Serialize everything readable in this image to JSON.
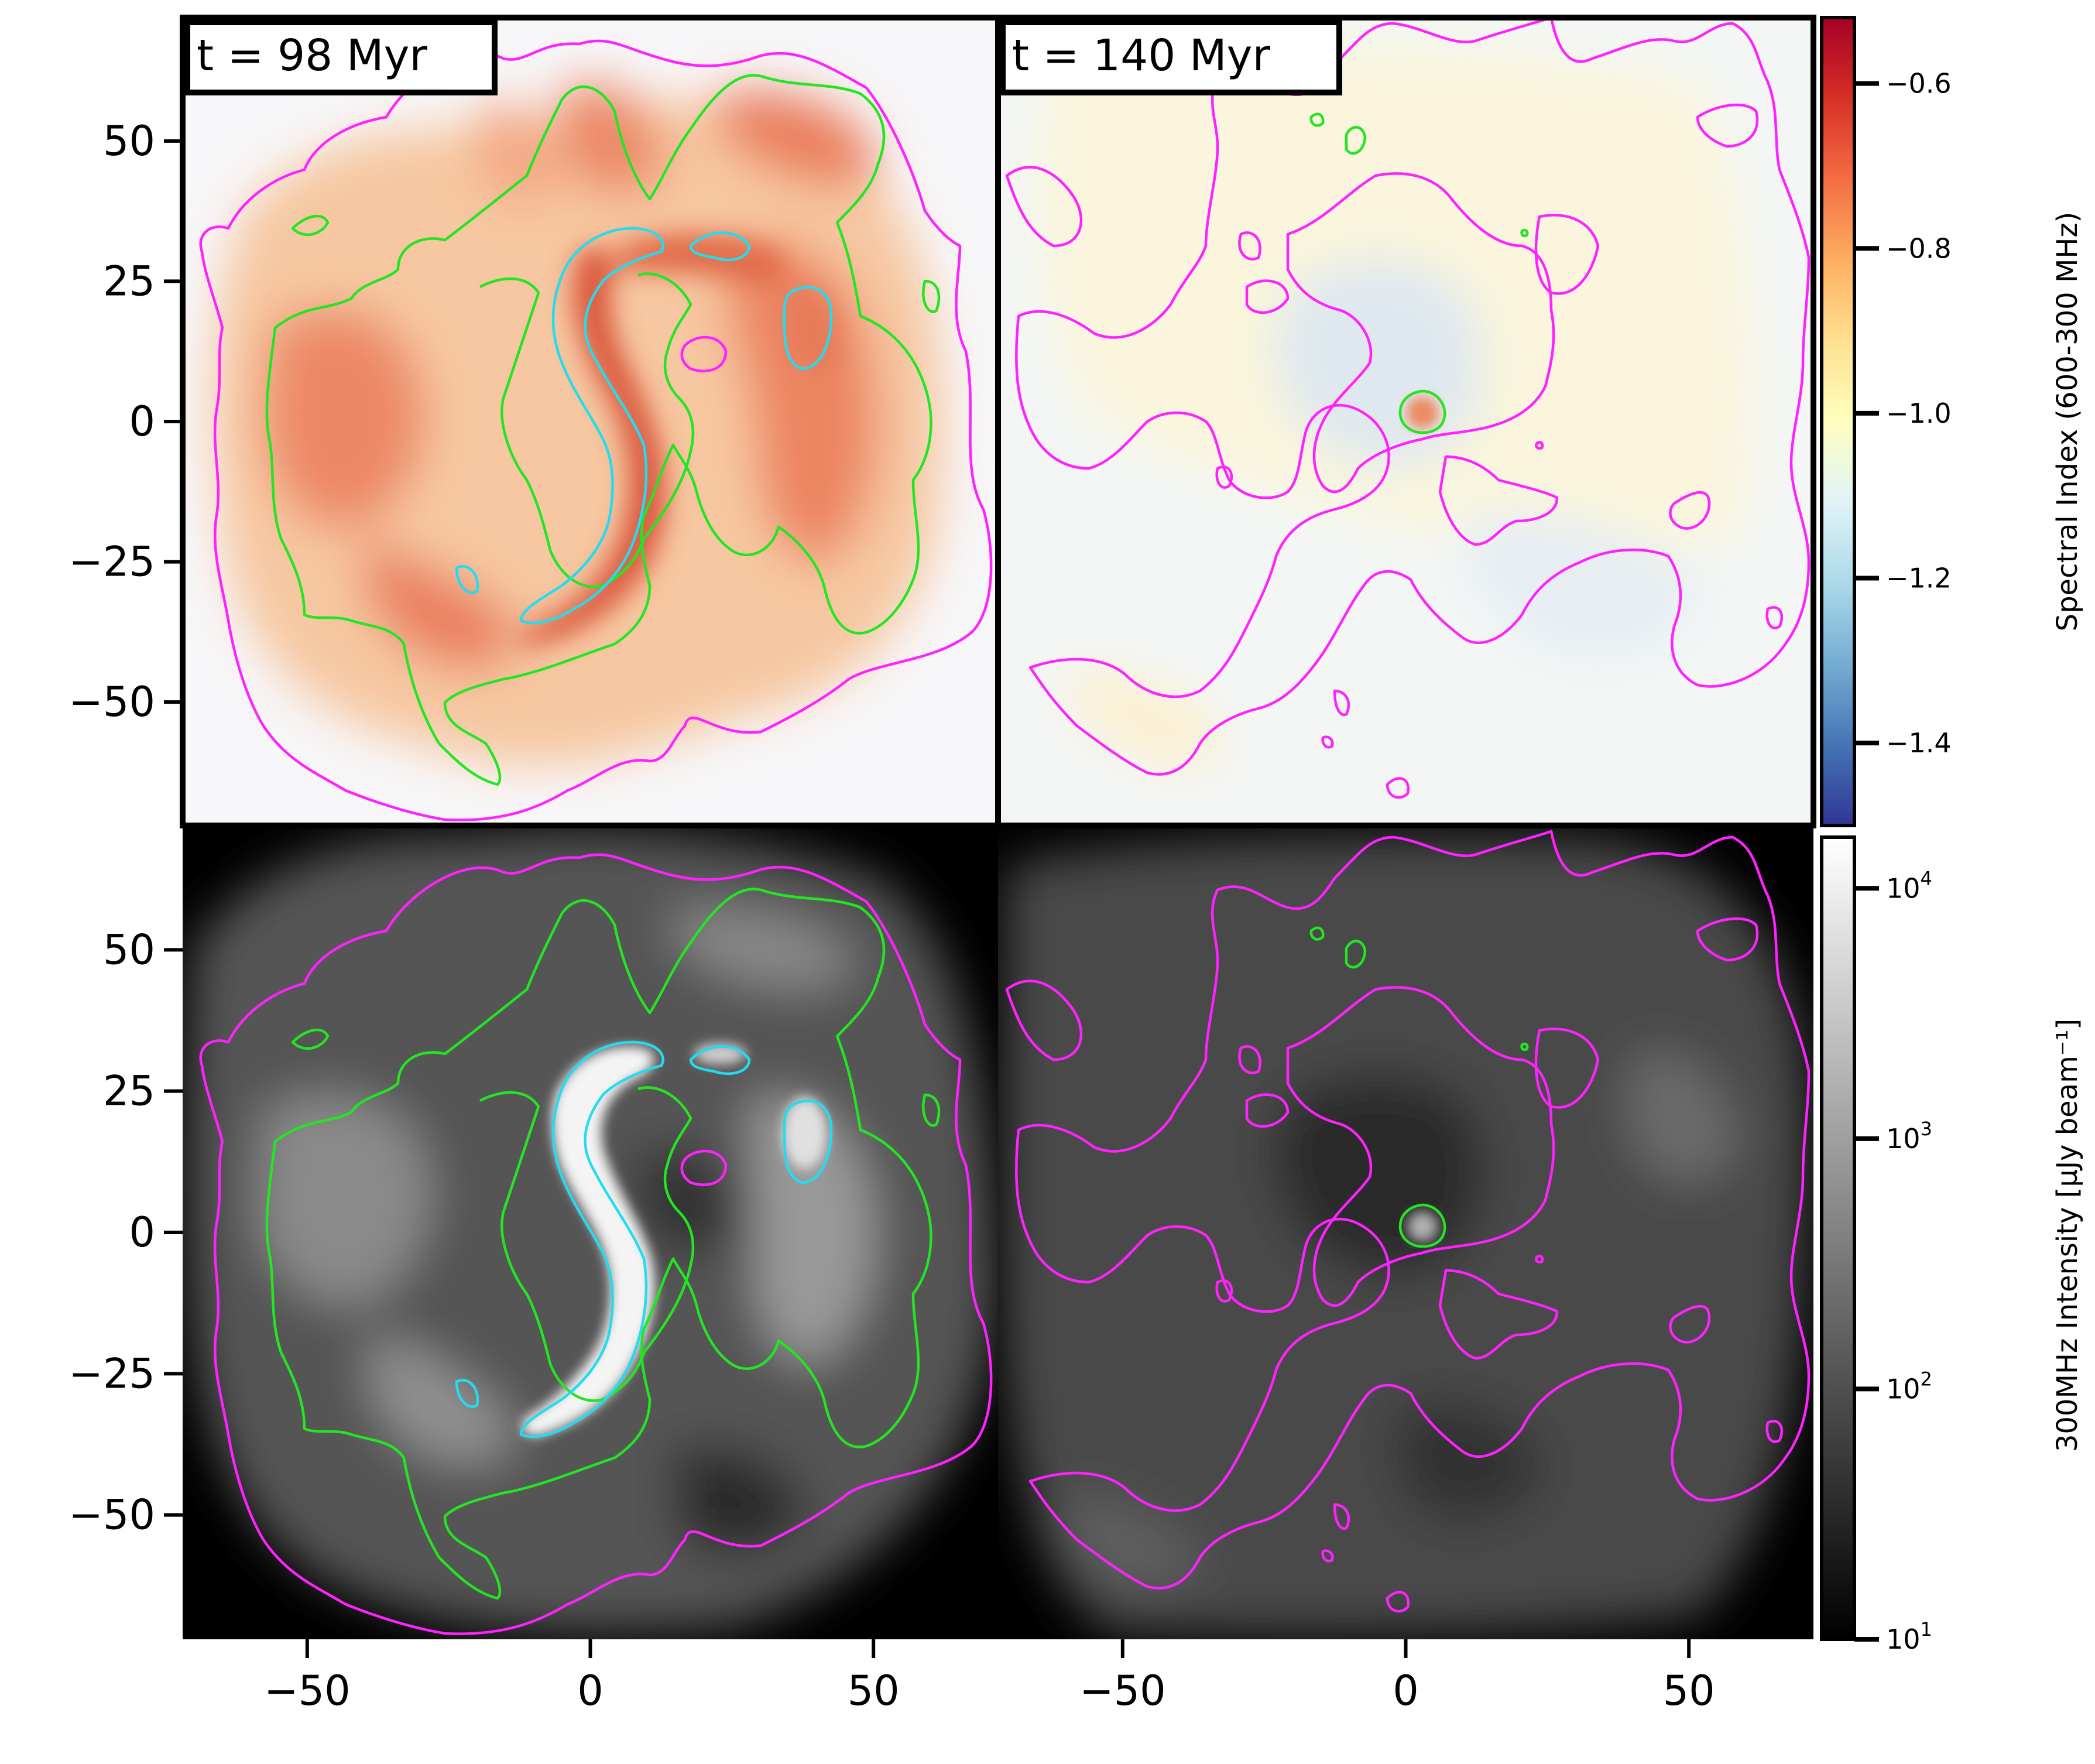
{
  "chart_data": {
    "type": "heatmap",
    "layout": "2x2 panel grid with shared axes",
    "grid": false,
    "xlim": [
      -72,
      72
    ],
    "ylim": [
      -72,
      72
    ],
    "xticks": [
      -50,
      0,
      50
    ],
    "yticks": [
      50,
      25,
      0,
      -25,
      -50
    ],
    "xtick_labels": [
      "−50",
      "0",
      "50"
    ],
    "ytick_labels": [
      "50",
      "25",
      "0",
      "−25",
      "−50"
    ],
    "xlabel": "",
    "ylabel": "",
    "panels": [
      {
        "row": 0,
        "col": 0,
        "time_label": "t = 98 Myr",
        "map": "spectral_index",
        "colormap": "RdYlBu_r"
      },
      {
        "row": 0,
        "col": 1,
        "time_label": "t = 140 Myr",
        "map": "spectral_index",
        "colormap": "RdYlBu_r"
      },
      {
        "row": 1,
        "col": 0,
        "map": "intensity_300MHz",
        "colormap": "gray"
      },
      {
        "row": 1,
        "col": 1,
        "map": "intensity_300MHz",
        "colormap": "gray"
      }
    ],
    "contour_colors": {
      "outer": "#ff22ff",
      "middle": "#22e622",
      "inner": "#22dcf0"
    },
    "colorbars": [
      {
        "label": "Spectral Index (600-300 MHz)",
        "scale": "linear",
        "range": [
          -1.5,
          -0.52
        ],
        "ticks": [
          -0.6,
          -0.8,
          -1.0,
          -1.2,
          -1.4
        ],
        "tick_labels": [
          "−0.6",
          "−0.8",
          "−1.0",
          "−1.2",
          "−1.4"
        ],
        "colors": [
          "#313695",
          "#4575b4",
          "#74add1",
          "#abd9e9",
          "#e0f3f8",
          "#ffffbf",
          "#fee090",
          "#fdae61",
          "#f46d43",
          "#d73027",
          "#a50026"
        ]
      },
      {
        "label": "300MHz Intensity [μJy beam⁻¹]",
        "scale": "log",
        "range": [
          10,
          16000
        ],
        "ticks": [
          10000,
          1000,
          100,
          10
        ],
        "tick_bases": [
          "10",
          "10",
          "10",
          "10"
        ],
        "tick_exponents": [
          "4",
          "3",
          "2",
          "1"
        ],
        "colors": [
          "#000000",
          "#ffffff"
        ]
      }
    ]
  }
}
